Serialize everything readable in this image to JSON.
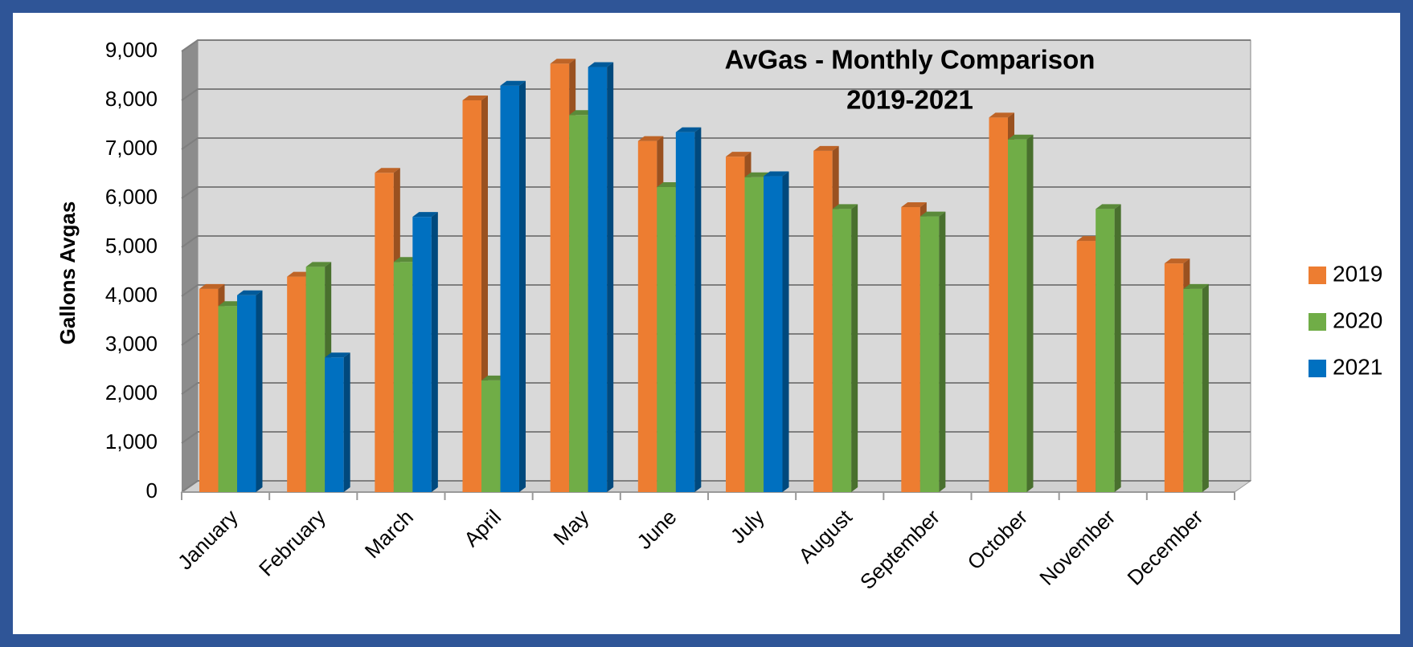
{
  "chart_data": {
    "type": "bar3d",
    "title": "AvGas - Monthly Comparison",
    "subtitle": "2019-2021",
    "y_label": "Gallons Avgas",
    "categories": [
      "January",
      "February",
      "March",
      "April",
      "May",
      "June",
      "July",
      "August",
      "September",
      "October",
      "November",
      "December"
    ],
    "series": [
      {
        "name": "2019",
        "color": "#ed7d31",
        "values": [
          4150,
          4400,
          6520,
          8000,
          8750,
          7170,
          6850,
          6970,
          5820,
          7650,
          5130,
          4670
        ]
      },
      {
        "name": "2020",
        "color": "#70ad47",
        "values": [
          3800,
          4600,
          4700,
          2280,
          7700,
          6230,
          6430,
          5780,
          5630,
          7200,
          5780,
          4150
        ]
      },
      {
        "name": "2021",
        "color": "#0070c0",
        "values": [
          4020,
          2750,
          5620,
          8300,
          8680,
          7350,
          6450,
          null,
          null,
          null,
          null,
          null
        ]
      }
    ],
    "ylim": [
      0,
      9000
    ],
    "yticks": [
      0,
      {
        "value": 1000,
        "label": "1,000"
      },
      {
        "value": 2000,
        "label": "2,000"
      },
      {
        "value": 3000,
        "label": "3,000"
      },
      {
        "value": 4000,
        "label": "4,000"
      },
      {
        "value": 5000,
        "label": "5,000"
      },
      {
        "value": 6000,
        "label": "6,000"
      },
      {
        "value": 7000,
        "label": "7,000"
      },
      {
        "value": 8000,
        "label": "8,000"
      },
      {
        "value": 9000,
        "label": "9,000"
      }
    ],
    "grid": true,
    "legend": "right"
  }
}
